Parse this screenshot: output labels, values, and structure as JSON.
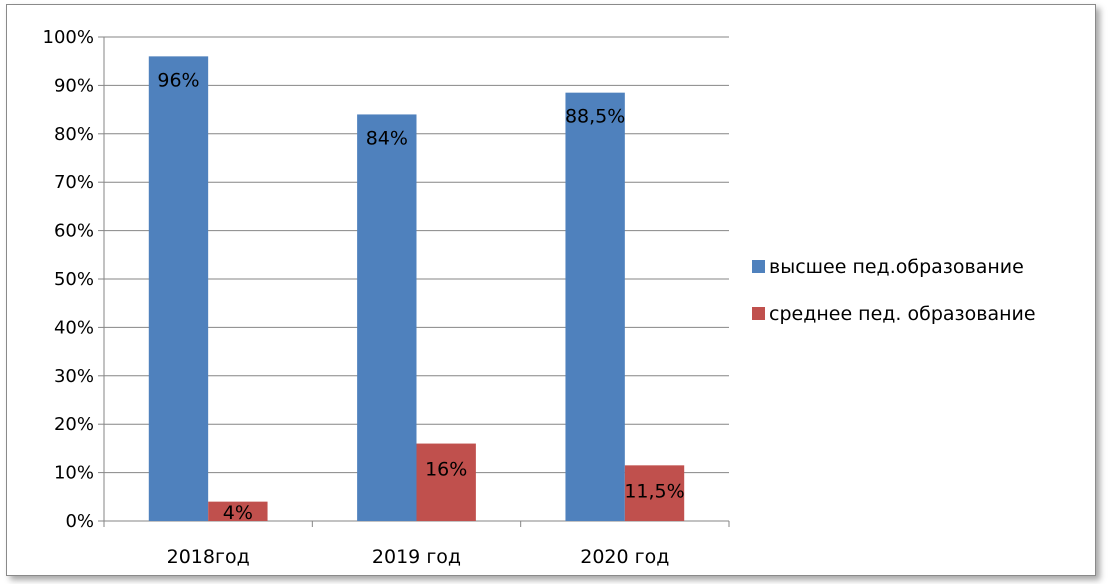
{
  "chart_data": {
    "type": "bar",
    "title": "",
    "xlabel": "",
    "ylabel": "",
    "ylim": [
      0,
      100
    ],
    "yticks": [
      "0%",
      "10%",
      "20%",
      "30%",
      "40%",
      "50%",
      "60%",
      "70%",
      "80%",
      "90%",
      "100%"
    ],
    "categories": [
      "2018год",
      "2019 год",
      "2020 год"
    ],
    "series": [
      {
        "name": "высшее пед.образование",
        "color": "#4F81BD",
        "values": [
          96,
          84,
          88.5
        ],
        "labels": [
          "96%",
          "84%",
          "88,5%"
        ]
      },
      {
        "name": "среднее пед. образование",
        "color": "#C0504D",
        "values": [
          4,
          16,
          11.5
        ],
        "labels": [
          "4%",
          "16%",
          "11,5%"
        ]
      }
    ],
    "grid": true,
    "legend": "right"
  }
}
